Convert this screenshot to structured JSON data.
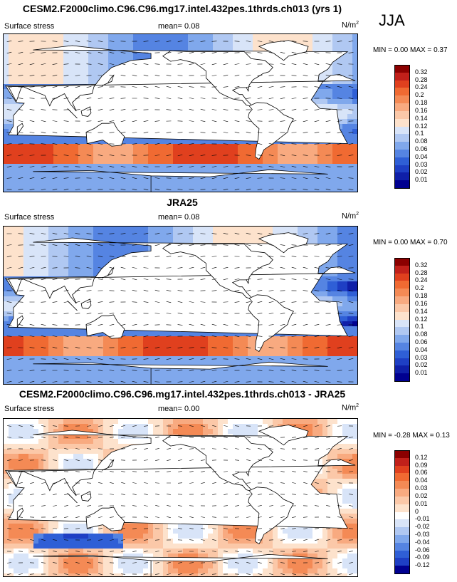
{
  "season": "JJA",
  "panels": [
    {
      "title": "CESM2.F2000climo.C96.C96.mg17.intel.432pes.1thrds.ch013 (yrs 1)",
      "variable": "Surface stress",
      "mean_label": "mean=",
      "mean_value": "0.08",
      "units": "N/m",
      "units_exp": "2",
      "min_label": "MIN =",
      "min_value": "0.00",
      "max_label": "MAX =",
      "max_value": "0.37",
      "palette": "abs",
      "legend_labels": [
        "0.32",
        "0.28",
        "0.24",
        "0.2",
        "0.18",
        "0.16",
        "0.14",
        "0.12",
        "0.1",
        "0.08",
        "0.06",
        "0.04",
        "0.03",
        "0.02",
        "0.01"
      ]
    },
    {
      "title": "JRA25",
      "variable": "Surface stress",
      "mean_label": "mean=",
      "mean_value": "0.08",
      "units": "N/m",
      "units_exp": "2",
      "min_label": "MIN =",
      "min_value": "0.00",
      "max_label": "MAX =",
      "max_value": "0.70",
      "palette": "abs",
      "legend_labels": [
        "0.32",
        "0.28",
        "0.24",
        "0.2",
        "0.18",
        "0.16",
        "0.14",
        "0.12",
        "0.1",
        "0.08",
        "0.06",
        "0.04",
        "0.03",
        "0.02",
        "0.01"
      ]
    },
    {
      "title": "CESM2.F2000climo.C96.C96.mg17.intel.432pes.1thrds.ch013 - JRA25",
      "variable": "Surface stress",
      "mean_label": "mean=",
      "mean_value": "0.00",
      "units": "N/m",
      "units_exp": "2",
      "min_label": "MIN =",
      "min_value": "-0.28",
      "max_label": "MAX =",
      "max_value": "0.13",
      "palette": "diff",
      "legend_labels": [
        "0.12",
        "0.09",
        "0.06",
        "0.04",
        "0.03",
        "0.02",
        "0.01",
        "0",
        "-0.01",
        "-0.02",
        "-0.03",
        "-0.04",
        "-0.06",
        "-0.09",
        "-0.12"
      ]
    }
  ],
  "colors": {
    "abs": [
      "#8b0000",
      "#c1201a",
      "#e0401e",
      "#f06a32",
      "#f48a55",
      "#f8aa80",
      "#fbc8a8",
      "#fde2cc",
      "#d8e4f8",
      "#b0c8f2",
      "#80a8ec",
      "#5584e2",
      "#2f5fd6",
      "#1e3fc4",
      "#0f1fa8",
      "#000090"
    ],
    "diff": [
      "#8b0000",
      "#c1201a",
      "#e0401e",
      "#f06a32",
      "#f48a55",
      "#f8aa80",
      "#fbc8a8",
      "#fde2cc",
      "#ffffff",
      "#d8e4f8",
      "#b0c8f2",
      "#80a8ec",
      "#5584e2",
      "#2f5fd6",
      "#1e3fc4",
      "#000090"
    ]
  }
}
